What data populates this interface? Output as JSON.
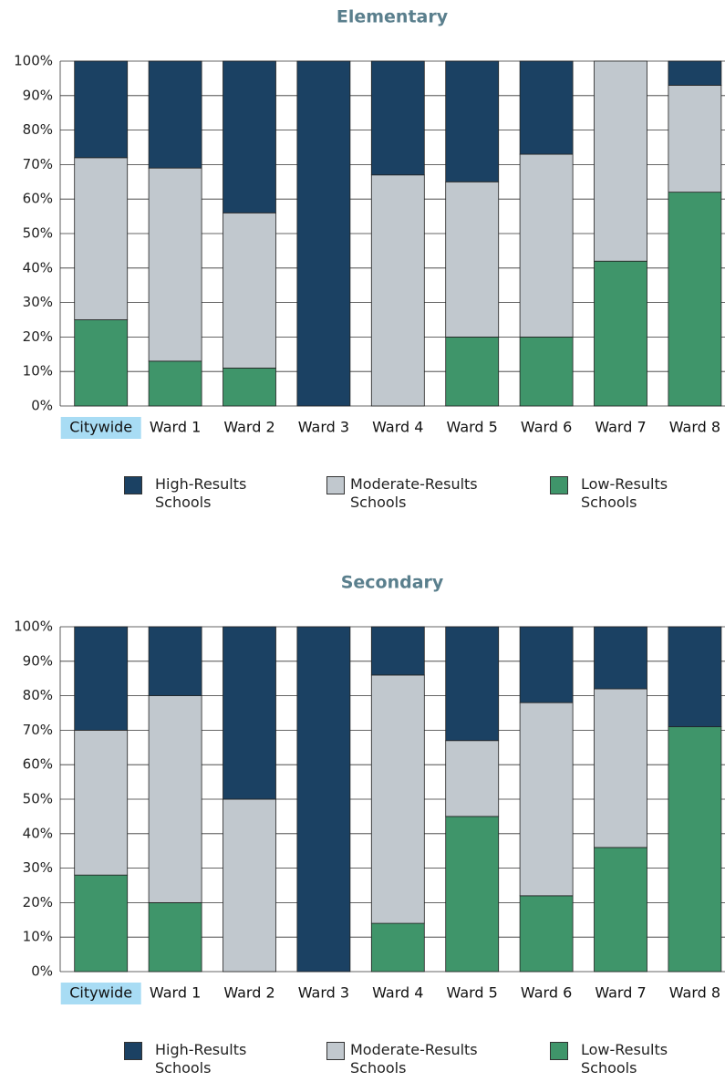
{
  "chart_data": [
    {
      "type": "bar",
      "stacked": true,
      "title": "Elementary",
      "categories": [
        "Citywide",
        "Ward 1",
        "Ward 2",
        "Ward 3",
        "Ward 4",
        "Ward 5",
        "Ward 6",
        "Ward 7",
        "Ward 8"
      ],
      "series": [
        {
          "name": "High-Results Schools",
          "color": "#1b4163",
          "values": [
            28,
            31,
            44,
            100,
            33,
            35,
            27,
            0,
            7
          ]
        },
        {
          "name": "Moderate-Results Schools",
          "color": "#c1c8ce",
          "values": [
            47,
            56,
            45,
            0,
            67,
            45,
            53,
            58,
            31
          ]
        },
        {
          "name": "Low-Results Schools",
          "color": "#3f956a",
          "values": [
            25,
            13,
            11,
            0,
            0,
            20,
            20,
            42,
            62
          ]
        }
      ],
      "ylim": [
        0,
        100
      ],
      "yticks": [
        {
          "value": 0,
          "label": "0%"
        },
        {
          "value": 10,
          "label": "10%"
        },
        {
          "value": 20,
          "label": "20%"
        },
        {
          "value": 30,
          "label": "30%"
        },
        {
          "value": 40,
          "label": "40%"
        },
        {
          "value": 50,
          "label": "50%"
        },
        {
          "value": 60,
          "label": "60%"
        },
        {
          "value": 70,
          "label": "70%"
        },
        {
          "value": 80,
          "label": "80%"
        },
        {
          "value": 90,
          "label": "90%"
        },
        {
          "value": 100,
          "label": "100%"
        }
      ],
      "grid": true,
      "highlight": {
        "index": 0,
        "color": "#a8dcf4"
      }
    },
    {
      "type": "bar",
      "stacked": true,
      "title": "Secondary",
      "categories": [
        "Citywide",
        "Ward 1",
        "Ward 2",
        "Ward 3",
        "Ward 4",
        "Ward 5",
        "Ward 6",
        "Ward 7",
        "Ward 8"
      ],
      "series": [
        {
          "name": "High-Results Schools",
          "color": "#1b4163",
          "values": [
            30,
            20,
            50,
            100,
            14,
            33,
            22,
            18,
            29
          ]
        },
        {
          "name": "Moderate-Results Schools",
          "color": "#c1c8ce",
          "values": [
            42,
            60,
            50,
            0,
            72,
            22,
            56,
            46,
            0
          ]
        },
        {
          "name": "Low-Results Schools",
          "color": "#3f956a",
          "values": [
            28,
            20,
            0,
            0,
            14,
            45,
            22,
            36,
            71
          ]
        }
      ],
      "ylim": [
        0,
        100
      ],
      "yticks": [
        {
          "value": 0,
          "label": "0%"
        },
        {
          "value": 10,
          "label": "10%"
        },
        {
          "value": 20,
          "label": "20%"
        },
        {
          "value": 30,
          "label": "30%"
        },
        {
          "value": 40,
          "label": "40%"
        },
        {
          "value": 50,
          "label": "50%"
        },
        {
          "value": 60,
          "label": "60%"
        },
        {
          "value": 70,
          "label": "70%"
        },
        {
          "value": 80,
          "label": "80%"
        },
        {
          "value": 90,
          "label": "90%"
        },
        {
          "value": 100,
          "label": "100%"
        }
      ],
      "grid": true,
      "highlight": {
        "index": 0,
        "color": "#a8dcf4"
      }
    }
  ]
}
